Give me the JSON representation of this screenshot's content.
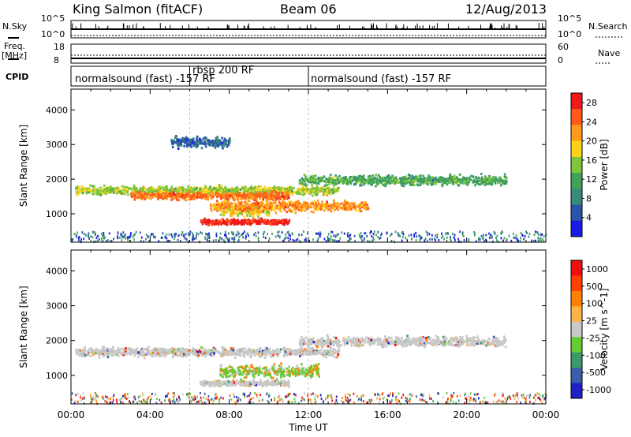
{
  "header": {
    "station": "King Salmon (fitACF)",
    "beam": "Beam 06",
    "date": "12/Aug/2013"
  },
  "status_panels": {
    "nsky_label": "N.Sky",
    "nsearch_label": "N.Search",
    "freq_label_1": "Freq.",
    "freq_label_2": "[MHz]",
    "nave_label": "Nave",
    "cpid_label": "CPID",
    "noise_ticks_left": [
      "10^5",
      "10^0"
    ],
    "noise_ticks_right": [
      "10^5",
      "10^0"
    ],
    "freq_ticks": [
      "18",
      "8"
    ],
    "nave_ticks": [
      "60",
      "0"
    ],
    "cpid_segments": [
      {
        "label": "normalsound (fast) -157 RF",
        "start_h": 0,
        "end_h": 6
      },
      {
        "label": "rbsp 200 RF",
        "start_h": 6,
        "end_h": 12
      },
      {
        "label": "normalsound (fast) -157 RF",
        "start_h": 12,
        "end_h": 24
      }
    ]
  },
  "chart_data": [
    {
      "type": "heatmap",
      "name": "power",
      "ylabel": "Slant Range [km]",
      "xlim": [
        0,
        24
      ],
      "ylim": [
        180,
        4600
      ],
      "yticks": [
        "1000",
        "2000",
        "3000",
        "4000"
      ],
      "colorbar_label": "Power [dB]",
      "colorbar_ticks": [
        "4",
        "8",
        "12",
        "16",
        "20",
        "24",
        "28"
      ],
      "colorbar_range": [
        0,
        30
      ],
      "colors": [
        "#1a1ae6",
        "#2a55a8",
        "#3a8a7a",
        "#40a35a",
        "#7ec63a",
        "#ffd21a",
        "#ff9a1a",
        "#ff5a1a",
        "#ee1a1a"
      ],
      "bands": [
        {
          "t_start": 0.2,
          "t_end": 13.5,
          "range_center": 1700,
          "range_width": 180,
          "level": 16
        },
        {
          "t_start": 3.0,
          "t_end": 11.0,
          "range_center": 1550,
          "range_width": 150,
          "level": 24
        },
        {
          "t_start": 7.5,
          "t_end": 10.0,
          "range_center": 1150,
          "range_width": 250,
          "level": 18
        },
        {
          "t_start": 7.0,
          "t_end": 15.0,
          "range_center": 1250,
          "range_width": 220,
          "level": 22
        },
        {
          "t_start": 6.5,
          "t_end": 11.0,
          "range_center": 800,
          "range_width": 120,
          "level": 28
        },
        {
          "t_start": 11.5,
          "t_end": 22.0,
          "range_center": 2000,
          "range_width": 200,
          "level": 12
        },
        {
          "t_start": 5.0,
          "t_end": 8.0,
          "range_center": 3100,
          "range_width": 220,
          "level": 6
        }
      ]
    },
    {
      "type": "heatmap",
      "name": "velocity",
      "ylabel": "Slant Range [km]",
      "xlabel": "Time UT",
      "xlim": [
        0,
        24
      ],
      "ylim": [
        180,
        4600
      ],
      "xticks": [
        "00:00",
        "04:00",
        "08:00",
        "12:00",
        "16:00",
        "20:00",
        "00:00"
      ],
      "yticks": [
        "1000",
        "2000",
        "3000",
        "4000"
      ],
      "colorbar_label": "Velocity [m s^-1]",
      "colorbar_ticks": [
        "1000",
        "500",
        "100",
        "25",
        "-25",
        "-100",
        "-500",
        "-1000"
      ],
      "colors": [
        "#2020c8",
        "#3a5fa8",
        "#3a9a6a",
        "#66cc33",
        "#c8c8c8",
        "#ffb347",
        "#ff8000",
        "#ff4000",
        "#ee1010"
      ],
      "bands": [
        {
          "t_start": 0.2,
          "t_end": 13.5,
          "range_center": 1700,
          "range_width": 180,
          "class": "ground"
        },
        {
          "t_start": 7.5,
          "t_end": 12.5,
          "range_center": 1150,
          "range_width": 250,
          "class": "positive"
        },
        {
          "t_start": 11.5,
          "t_end": 22.0,
          "range_center": 2000,
          "range_width": 200,
          "class": "ground"
        },
        {
          "t_start": 6.5,
          "t_end": 11.0,
          "range_center": 800,
          "range_width": 120,
          "class": "ground"
        }
      ]
    }
  ]
}
